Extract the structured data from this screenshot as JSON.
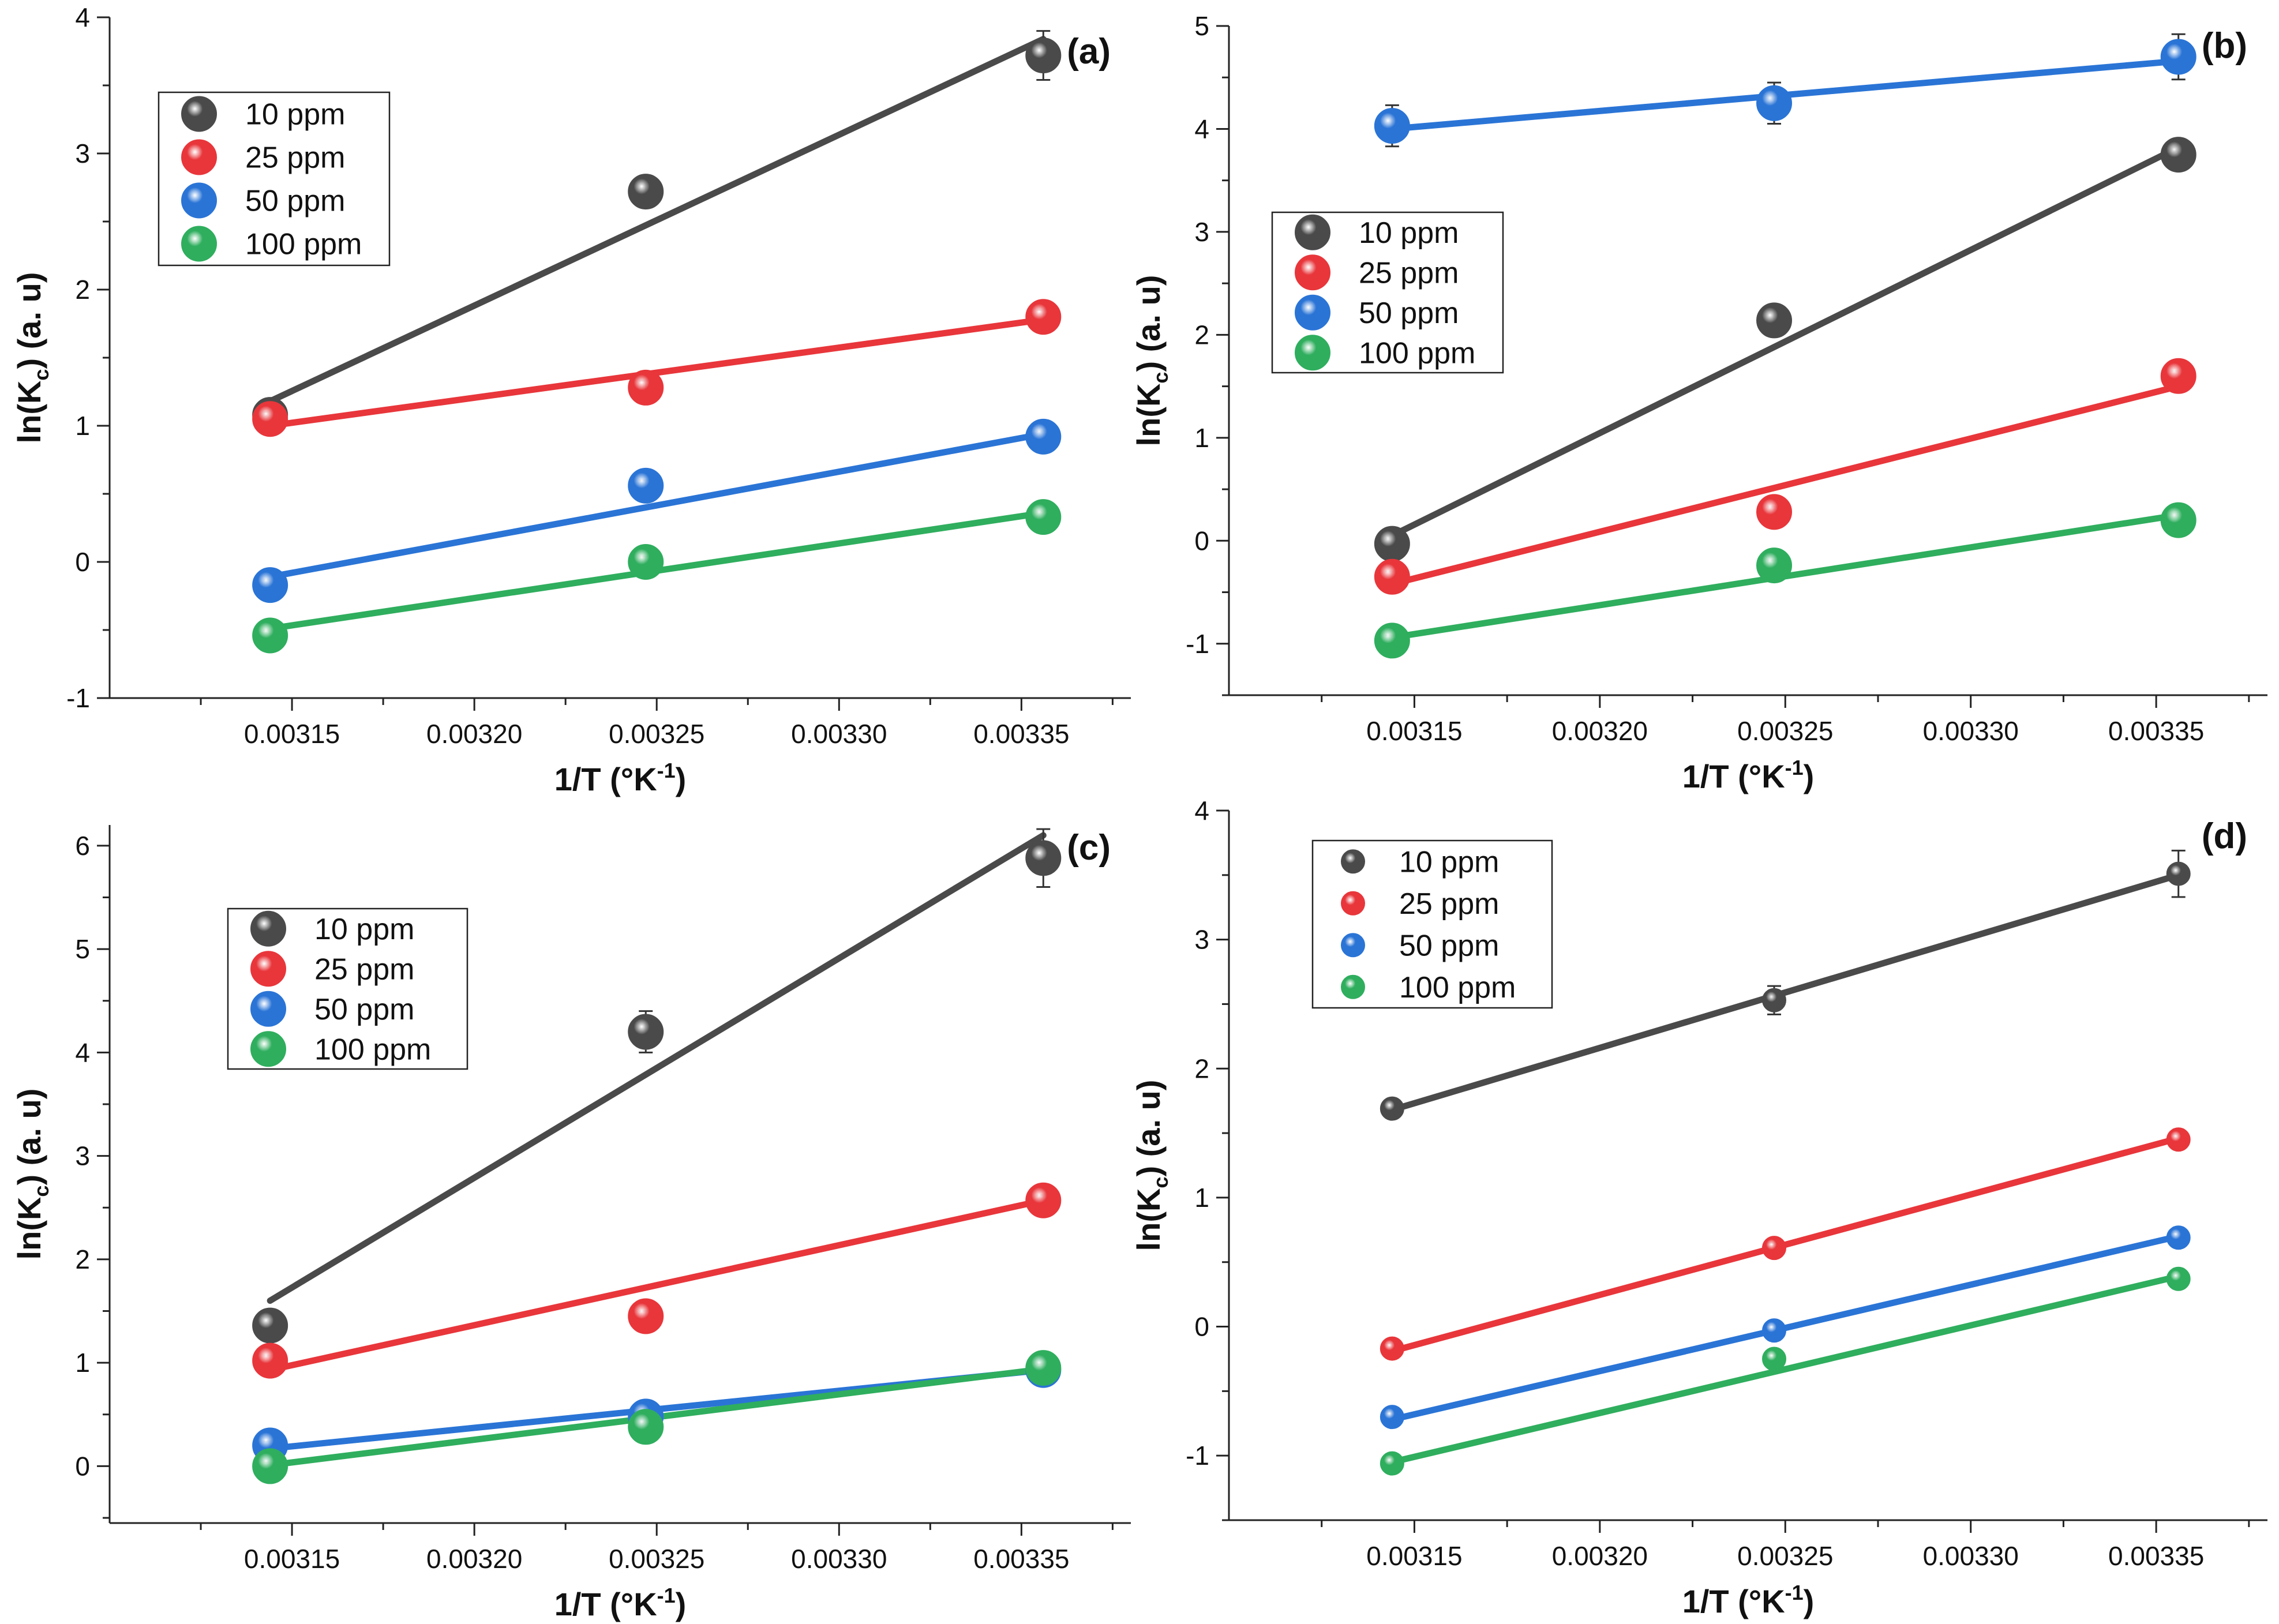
{
  "figure": {
    "colors": {
      "10 ppm": "#4a4a4a",
      "25 ppm": "#e8363b",
      "50 ppm": "#2a74d6",
      "100 ppm": "#2fae5e"
    }
  },
  "chart_data": [
    {
      "type": "scatter",
      "panel_label": "(a)",
      "xlabel": "1/T (°K",
      "xlabel_sup": "-1",
      "xlabel_end": ")",
      "ylabel": "ln(K",
      "ylabel_sub": "c",
      "ylabel_end": ") (a. u)",
      "xlim": [
        0.0031,
        0.00338
      ],
      "ylim": [
        -1,
        4
      ],
      "xticks": [
        0.00315,
        0.0032,
        0.00325,
        0.0033,
        0.00335
      ],
      "xtick_labels": [
        "0.00315",
        "0.00320",
        "0.00325",
        "0.00330",
        "0.00335"
      ],
      "yticks": [
        -1,
        0,
        1,
        2,
        3,
        4
      ],
      "ytick_labels": [
        "-1",
        "0",
        "1",
        "2",
        "3",
        "4"
      ],
      "legend_position": "top-left",
      "x": [
        0.003144,
        0.003247,
        0.003356
      ],
      "series": [
        {
          "name": "10 ppm",
          "values": [
            1.08,
            2.72,
            3.72
          ],
          "fit": [
            1.18,
            3.84
          ],
          "err": [
            0.05,
            0.1,
            0.18
          ]
        },
        {
          "name": "25 ppm",
          "values": [
            1.05,
            1.28,
            1.8
          ],
          "fit": [
            1.0,
            1.78
          ],
          "err": [
            0.05,
            0.05,
            0.05
          ]
        },
        {
          "name": "50 ppm",
          "values": [
            -0.17,
            0.56,
            0.92
          ],
          "fit": [
            -0.11,
            0.94
          ],
          "err": [
            0.04,
            0.04,
            0.04
          ]
        },
        {
          "name": "100 ppm",
          "values": [
            -0.54,
            0.0,
            0.33
          ],
          "fit": [
            -0.49,
            0.36
          ],
          "err": [
            0.04,
            0.04,
            0.04
          ]
        }
      ]
    },
    {
      "type": "scatter",
      "panel_label": "(b)",
      "xlabel": "1/T (°K",
      "xlabel_sup": "-1",
      "xlabel_end": ")",
      "ylabel": "ln(K",
      "ylabel_sub": "c",
      "ylabel_end": ") (a. u)",
      "xlim": [
        0.0031,
        0.00338
      ],
      "ylim": [
        -1.5,
        5
      ],
      "xticks": [
        0.00315,
        0.0032,
        0.00325,
        0.0033,
        0.00335
      ],
      "xtick_labels": [
        "0.00315",
        "0.00320",
        "0.00325",
        "0.00330",
        "0.00335"
      ],
      "yticks": [
        -1,
        0,
        1,
        2,
        3,
        4,
        5
      ],
      "ytick_labels": [
        "-1",
        "0",
        "1",
        "2",
        "3",
        "4",
        "5"
      ],
      "legend_position": "center-left",
      "x": [
        0.003144,
        0.003247,
        0.003356
      ],
      "series": [
        {
          "name": "10 ppm",
          "values": [
            -0.03,
            2.14,
            3.75
          ],
          "fit": [
            0.05,
            3.82
          ],
          "err": [
            0.05,
            0.1,
            0.15
          ]
        },
        {
          "name": "25 ppm",
          "values": [
            -0.35,
            0.28,
            1.6
          ],
          "fit": [
            -0.42,
            1.5
          ],
          "err": [
            0.05,
            0.05,
            0.05
          ]
        },
        {
          "name": "50 ppm",
          "values": [
            4.03,
            4.25,
            4.7
          ],
          "fit": [
            4.0,
            4.66
          ],
          "err": [
            0.2,
            0.2,
            0.22
          ]
        },
        {
          "name": "100 ppm",
          "values": [
            -0.97,
            -0.24,
            0.2
          ],
          "fit": [
            -0.94,
            0.25
          ],
          "err": [
            0.05,
            0.05,
            0.05
          ]
        }
      ]
    },
    {
      "type": "scatter",
      "panel_label": "(c)",
      "xlabel": "1/T (°K",
      "xlabel_sup": "-1",
      "xlabel_end": ")",
      "ylabel": "ln(K",
      "ylabel_sub": "c",
      "ylabel_end": ") (a. u)",
      "xlim": [
        0.0031,
        0.00338
      ],
      "ylim": [
        -0.55,
        6.2
      ],
      "xticks": [
        0.00315,
        0.0032,
        0.00325,
        0.0033,
        0.00335
      ],
      "xtick_labels": [
        "0.00315",
        "0.00320",
        "0.00325",
        "0.00330",
        "0.00335"
      ],
      "yticks": [
        0,
        1,
        2,
        3,
        4,
        5,
        6
      ],
      "ytick_labels": [
        "0",
        "1",
        "2",
        "3",
        "4",
        "5",
        "6"
      ],
      "legend_position": "top-left",
      "x": [
        0.003144,
        0.003247,
        0.003356
      ],
      "series": [
        {
          "name": "10 ppm",
          "values": [
            1.36,
            4.2,
            5.88
          ],
          "fit": [
            1.6,
            6.1
          ],
          "err": [
            0.08,
            0.2,
            0.28
          ]
        },
        {
          "name": "25 ppm",
          "values": [
            1.02,
            1.45,
            2.57
          ],
          "fit": [
            0.93,
            2.57
          ],
          "err": [
            0.05,
            0.05,
            0.05
          ]
        },
        {
          "name": "50 ppm",
          "values": [
            0.2,
            0.48,
            0.93
          ],
          "fit": [
            0.17,
            0.93
          ],
          "err": [
            0.04,
            0.04,
            0.04
          ]
        },
        {
          "name": "100 ppm",
          "values": [
            0.0,
            0.38,
            0.95
          ],
          "fit": [
            0.01,
            0.94
          ],
          "err": [
            0.04,
            0.04,
            0.04
          ]
        }
      ]
    },
    {
      "type": "scatter",
      "panel_label": "(d)",
      "xlabel": "1/T (°K",
      "xlabel_sup": "-1",
      "xlabel_end": ")",
      "ylabel": "ln(K",
      "ylabel_sub": "c",
      "ylabel_end": ") (a. u)",
      "xlim": [
        0.0031,
        0.00338
      ],
      "ylim": [
        -1.5,
        4
      ],
      "xticks": [
        0.00315,
        0.0032,
        0.00325,
        0.0033,
        0.00335
      ],
      "xtick_labels": [
        "0.00315",
        "0.00320",
        "0.00325",
        "0.00330",
        "0.00335"
      ],
      "yticks": [
        -1,
        0,
        1,
        2,
        3,
        4
      ],
      "ytick_labels": [
        "-1",
        "0",
        "1",
        "2",
        "3",
        "4"
      ],
      "legend_position": "top-left",
      "x": [
        0.003144,
        0.003247,
        0.003356
      ],
      "series": [
        {
          "name": "10 ppm",
          "values": [
            1.69,
            2.53,
            3.51
          ],
          "fit": [
            1.68,
            3.5
          ],
          "err": [
            0.05,
            0.11,
            0.18
          ]
        },
        {
          "name": "25 ppm",
          "values": [
            -0.17,
            0.61,
            1.45
          ],
          "fit": [
            -0.19,
            1.46
          ],
          "err": [
            0.04,
            0.04,
            0.04
          ]
        },
        {
          "name": "50 ppm",
          "values": [
            -0.7,
            -0.03,
            0.69
          ],
          "fit": [
            -0.72,
            0.7
          ],
          "err": [
            0.04,
            0.04,
            0.04
          ]
        },
        {
          "name": "100 ppm",
          "values": [
            -1.06,
            -0.25,
            0.37
          ],
          "fit": [
            -1.05,
            0.39
          ],
          "err": [
            0.04,
            0.04,
            0.04
          ]
        }
      ]
    }
  ]
}
